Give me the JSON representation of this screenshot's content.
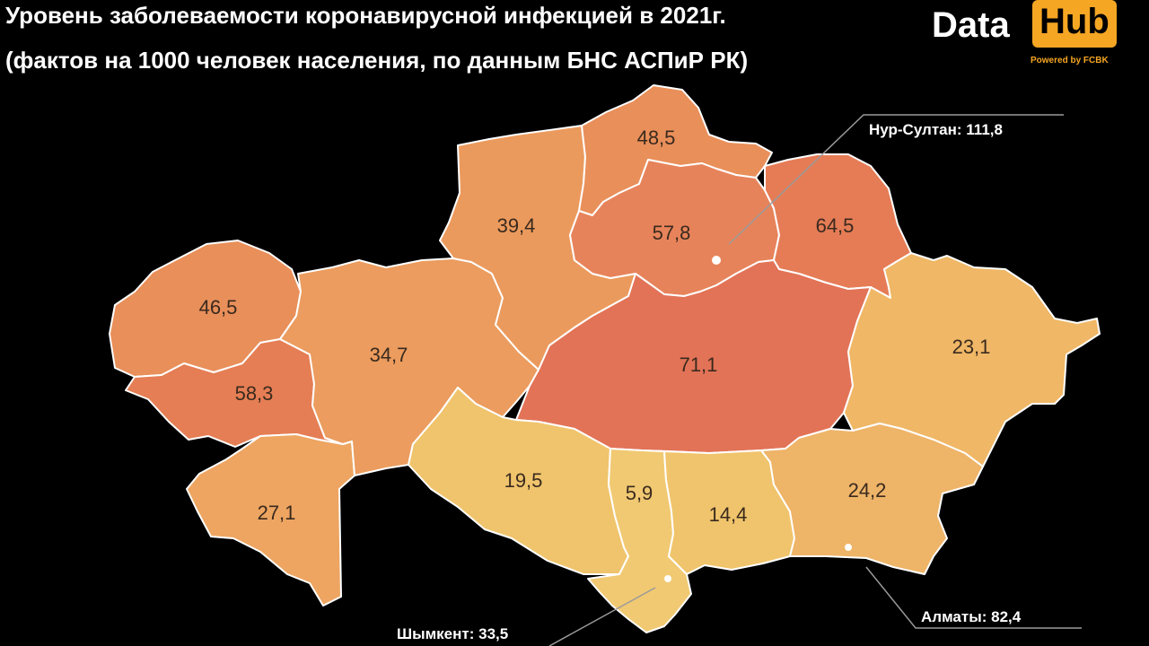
{
  "header": {
    "title_line1": "Уровень заболеваемости коронавирусной инфекцией в 2021г.",
    "title_line2": "(фактов на 1000 человек населения, по данным БНС АСПиР РК)"
  },
  "logo": {
    "word1": "Data",
    "word2": "Hub",
    "tagline": "Powered by FCBK",
    "accent_color": "#f5a623"
  },
  "map": {
    "regions": [
      {
        "id": "west-kazakhstan",
        "value": "46,5",
        "color": "#e88f5a"
      },
      {
        "id": "atyrau",
        "value": "58,3",
        "color": "#e57e54"
      },
      {
        "id": "mangystau",
        "value": "27,1",
        "color": "#eda561"
      },
      {
        "id": "aktobe",
        "value": "34,7",
        "color": "#eb9c5e"
      },
      {
        "id": "kostanay",
        "value": "39,4",
        "color": "#eb9a5d"
      },
      {
        "id": "north-kazakhstan",
        "value": "48,5",
        "color": "#e98f5a"
      },
      {
        "id": "akmola",
        "value": "57,8",
        "color": "#e7835a"
      },
      {
        "id": "pavlodar",
        "value": "64,5",
        "color": "#e57c56"
      },
      {
        "id": "karaganda",
        "value": "71,1",
        "color": "#e27357"
      },
      {
        "id": "east-kazakhstan",
        "value": "23,1",
        "color": "#efb766"
      },
      {
        "id": "kyzylorda",
        "value": "19,5",
        "color": "#f0c46c"
      },
      {
        "id": "turkestan",
        "value": "5,9",
        "color": "#f1c972"
      },
      {
        "id": "zhambyl",
        "value": "14,4",
        "color": "#f0c46c"
      },
      {
        "id": "almaty-region",
        "value": "24,2",
        "color": "#eeb468"
      }
    ],
    "city_callouts": [
      {
        "id": "nur-sultan",
        "text": "Нур-Султан: 111,8"
      },
      {
        "id": "shymkent",
        "text": "Шымкент: 33,5"
      },
      {
        "id": "almaty",
        "text": "Алматы: 82,4"
      }
    ]
  }
}
